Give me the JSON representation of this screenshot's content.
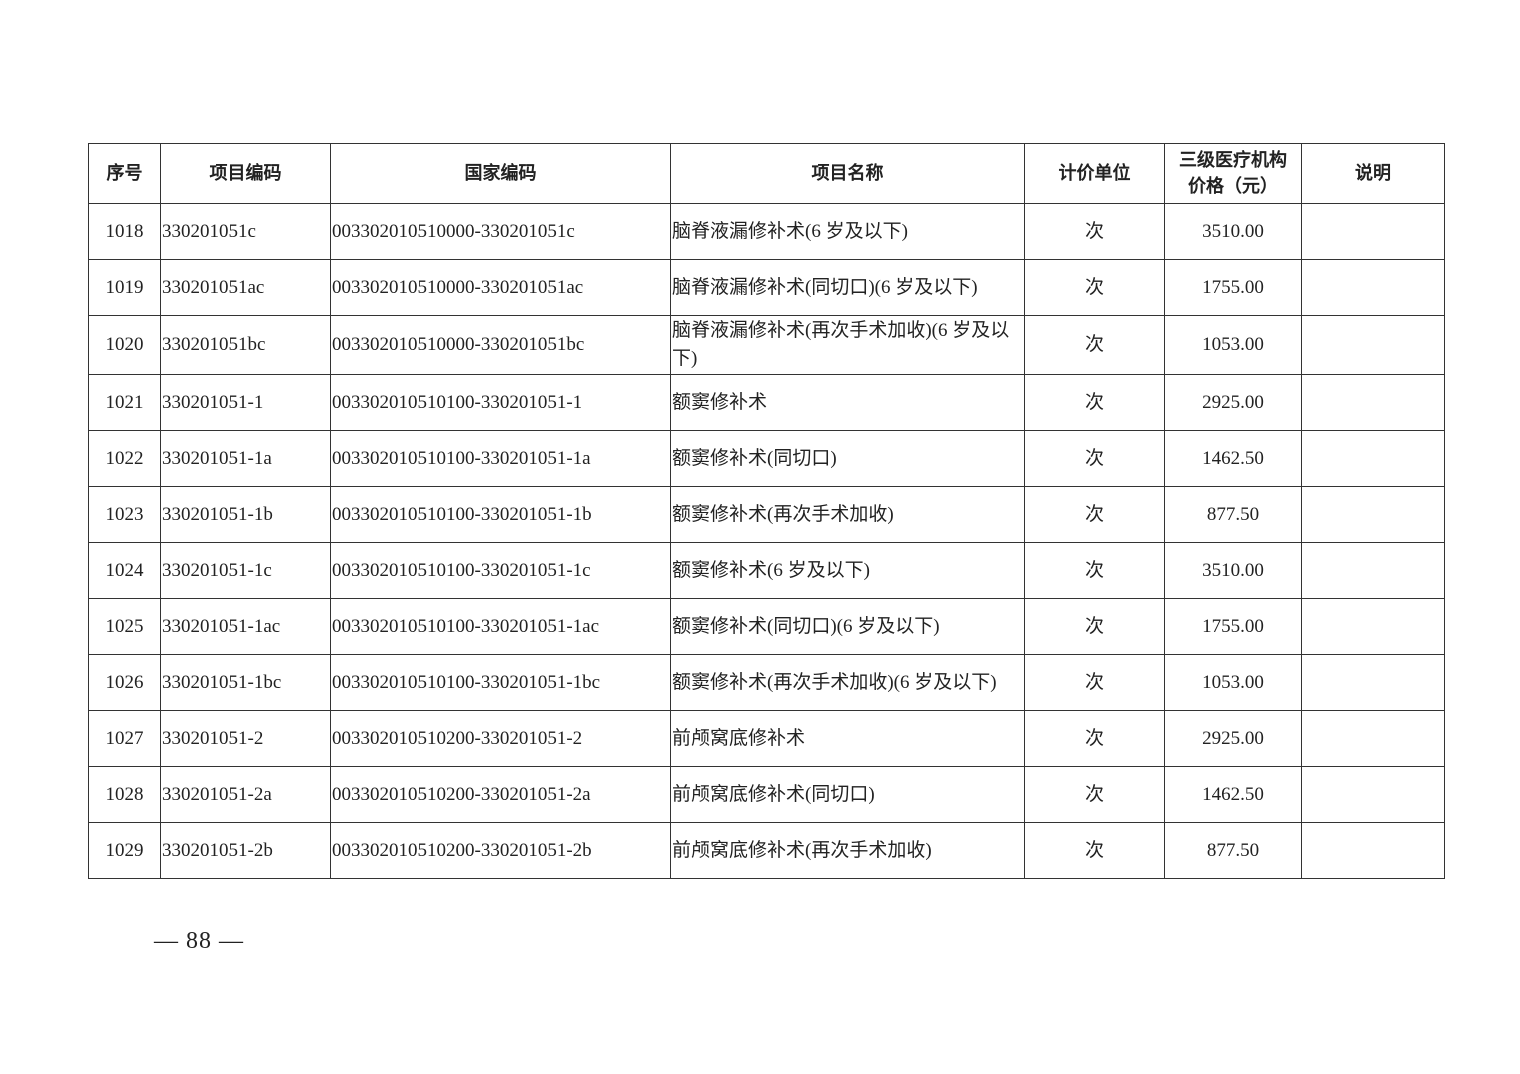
{
  "table": {
    "headers": [
      "序号",
      "项目编码",
      "国家编码",
      "项目名称",
      "计价单位",
      "三级医疗机构价格（元）",
      "说明"
    ],
    "header_price_line1": "三级医疗机构",
    "header_price_line2": "价格（元）",
    "rows": [
      {
        "no": "1018",
        "code": "330201051c",
        "national": "003302010510000-330201051c",
        "name": "脑脊液漏修补术(6 岁及以下)",
        "unit": "次",
        "price": "3510.00",
        "note": ""
      },
      {
        "no": "1019",
        "code": "330201051ac",
        "national": "003302010510000-330201051ac",
        "name": "脑脊液漏修补术(同切口)(6 岁及以下)",
        "unit": "次",
        "price": "1755.00",
        "note": ""
      },
      {
        "no": "1020",
        "code": "330201051bc",
        "national": "003302010510000-330201051bc",
        "name": "脑脊液漏修补术(再次手术加收)(6 岁及以下)",
        "unit": "次",
        "price": "1053.00",
        "note": ""
      },
      {
        "no": "1021",
        "code": "330201051-1",
        "national": "003302010510100-330201051-1",
        "name": "额窦修补术",
        "unit": "次",
        "price": "2925.00",
        "note": ""
      },
      {
        "no": "1022",
        "code": "330201051-1a",
        "national": "003302010510100-330201051-1a",
        "name": "额窦修补术(同切口)",
        "unit": "次",
        "price": "1462.50",
        "note": ""
      },
      {
        "no": "1023",
        "code": "330201051-1b",
        "national": "003302010510100-330201051-1b",
        "name": "额窦修补术(再次手术加收)",
        "unit": "次",
        "price": "877.50",
        "note": ""
      },
      {
        "no": "1024",
        "code": "330201051-1c",
        "national": "003302010510100-330201051-1c",
        "name": "额窦修补术(6 岁及以下)",
        "unit": "次",
        "price": "3510.00",
        "note": ""
      },
      {
        "no": "1025",
        "code": "330201051-1ac",
        "national": "003302010510100-330201051-1ac",
        "name": "额窦修补术(同切口)(6 岁及以下)",
        "unit": "次",
        "price": "1755.00",
        "note": ""
      },
      {
        "no": "1026",
        "code": "330201051-1bc",
        "national": "003302010510100-330201051-1bc",
        "name": "额窦修补术(再次手术加收)(6 岁及以下)",
        "unit": "次",
        "price": "1053.00",
        "note": ""
      },
      {
        "no": "1027",
        "code": "330201051-2",
        "national": "003302010510200-330201051-2",
        "name": "前颅窝底修补术",
        "unit": "次",
        "price": "2925.00",
        "note": ""
      },
      {
        "no": "1028",
        "code": "330201051-2a",
        "national": "003302010510200-330201051-2a",
        "name": "前颅窝底修补术(同切口)",
        "unit": "次",
        "price": "1462.50",
        "note": ""
      },
      {
        "no": "1029",
        "code": "330201051-2b",
        "national": "003302010510200-330201051-2b",
        "name": "前颅窝底修补术(再次手术加收)",
        "unit": "次",
        "price": "877.50",
        "note": ""
      }
    ]
  },
  "footer": {
    "page_number": "— 88 —"
  }
}
